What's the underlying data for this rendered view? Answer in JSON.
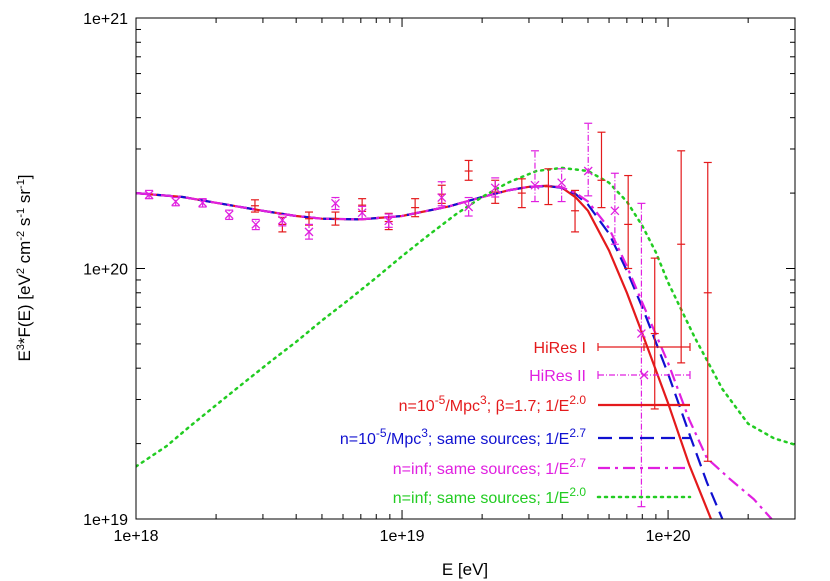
{
  "chart_data": {
    "type": "line",
    "xlabel": "E [eV]",
    "ylabel": {
      "base": "E",
      "sup1": "3",
      "mid1": "*F(E) [eV",
      "sup2": "2",
      "mid2": " cm",
      "sup3": "-2",
      "mid3": " s",
      "sup4": "-1",
      "mid4": " sr",
      "sup5": "-1",
      "end": "]"
    },
    "xscale": "log",
    "yscale": "log",
    "xlim": [
      1e+18,
      3e+20
    ],
    "ylim": [
      1e+19,
      1e+21
    ],
    "xticks": [
      {
        "value": 1e+18,
        "label": "1e+18"
      },
      {
        "value": 1e+19,
        "label": "1e+19"
      },
      {
        "value": 1e+20,
        "label": "1e+20"
      }
    ],
    "yticks": [
      {
        "value": 1e+19,
        "label": "1e+19"
      },
      {
        "value": 1e+20,
        "label": "1e+20"
      },
      {
        "value": 1e+21,
        "label": "1e+21"
      }
    ],
    "grid": false,
    "legend_position": "bottom-right",
    "legend": [
      {
        "parts": [
          {
            "t": "HiRes I"
          }
        ],
        "color": "#e41a1c",
        "style": "errorbar"
      },
      {
        "parts": [
          {
            "t": "HiRes II"
          }
        ],
        "color": "#e020e0",
        "style": "errorbar-x"
      },
      {
        "parts": [
          {
            "t": "n=10"
          },
          {
            "t": "-5",
            "sup": true
          },
          {
            "t": "/Mpc"
          },
          {
            "t": "3",
            "sup": true
          },
          {
            "t": "; β=1.7;  1/E"
          },
          {
            "t": "2.0",
            "sup": true
          }
        ],
        "color": "#e41a1c",
        "style": "solid"
      },
      {
        "parts": [
          {
            "t": "n=10"
          },
          {
            "t": "-5",
            "sup": true
          },
          {
            "t": "/Mpc"
          },
          {
            "t": "3",
            "sup": true
          },
          {
            "t": "; same sources; 1/E"
          },
          {
            "t": "2.7",
            "sup": true
          }
        ],
        "color": "#1010d0",
        "style": "dash"
      },
      {
        "parts": [
          {
            "t": "n=inf; same sources; 1/E"
          },
          {
            "t": "2.7",
            "sup": true
          }
        ],
        "color": "#e020e0",
        "style": "dashdot"
      },
      {
        "parts": [
          {
            "t": "n=inf; same sources; 1/E"
          },
          {
            "t": "2.0",
            "sup": true
          }
        ],
        "color": "#22cc22",
        "style": "dot"
      }
    ],
    "series": [
      {
        "name": "HiRes I",
        "kind": "errorbar",
        "color": "#e41a1c",
        "points": [
          {
            "x": 2.8e+18,
            "y": 1.78e+20,
            "lo": 1.68e+20,
            "hi": 1.88e+20
          },
          {
            "x": 3.55e+18,
            "y": 1.5e+20,
            "lo": 1.4e+20,
            "hi": 1.6e+20
          },
          {
            "x": 4.47e+18,
            "y": 1.58e+20,
            "lo": 1.49e+20,
            "hi": 1.68e+20
          },
          {
            "x": 5.62e+18,
            "y": 1.58e+20,
            "lo": 1.49e+20,
            "hi": 1.68e+20
          },
          {
            "x": 7.08e+18,
            "y": 1.79e+20,
            "lo": 1.69e+20,
            "hi": 1.9e+20
          },
          {
            "x": 8.91e+18,
            "y": 1.54e+20,
            "lo": 1.43e+20,
            "hi": 1.66e+20
          },
          {
            "x": 1.12e+19,
            "y": 1.75e+20,
            "lo": 1.61e+20,
            "hi": 1.9e+20
          },
          {
            "x": 1.41e+19,
            "y": 1.98e+20,
            "lo": 1.82e+20,
            "hi": 2.15e+20
          },
          {
            "x": 1.78e+19,
            "y": 2.45e+20,
            "lo": 2.25e+20,
            "hi": 2.7e+20
          },
          {
            "x": 2.24e+19,
            "y": 2.02e+20,
            "lo": 1.82e+20,
            "hi": 2.25e+20
          },
          {
            "x": 2.82e+19,
            "y": 2e+20,
            "lo": 1.75e+20,
            "hi": 2.28e+20
          },
          {
            "x": 3.55e+19,
            "y": 2.12e+20,
            "lo": 1.8e+20,
            "hi": 2.5e+20
          },
          {
            "x": 4.47e+19,
            "y": 1.7e+20,
            "lo": 1.4e+20,
            "hi": 2.05e+20
          },
          {
            "x": 5.62e+19,
            "y": 2.25e+20,
            "lo": 1.75e+20,
            "hi": 3.5e+20
          },
          {
            "x": 7.08e+19,
            "y": 1.5e+20,
            "lo": 1e+20,
            "hi": 2.35e+20
          },
          {
            "x": 8.91e+19,
            "y": 5.5e+19,
            "lo": 2.75e+19,
            "hi": 1.1e+20
          },
          {
            "x": 1.12e+20,
            "y": 1.25e+20,
            "lo": 4.2e+19,
            "hi": 2.95e+20
          },
          {
            "x": 1.41e+20,
            "y": 8e+19,
            "lo": 1.7e+19,
            "hi": 2.65e+20
          }
        ]
      },
      {
        "name": "HiRes II",
        "kind": "errorbar-x",
        "color": "#e020e0",
        "points": [
          {
            "x": 1.12e+18,
            "y": 1.97e+20,
            "lo": 1.9e+20,
            "hi": 2.05e+20
          },
          {
            "x": 1.41e+18,
            "y": 1.85e+20,
            "lo": 1.78e+20,
            "hi": 1.92e+20
          },
          {
            "x": 1.78e+18,
            "y": 1.83e+20,
            "lo": 1.76e+20,
            "hi": 1.9e+20
          },
          {
            "x": 2.24e+18,
            "y": 1.64e+20,
            "lo": 1.57e+20,
            "hi": 1.71e+20
          },
          {
            "x": 2.82e+18,
            "y": 1.5e+20,
            "lo": 1.43e+20,
            "hi": 1.57e+20
          },
          {
            "x": 3.55e+18,
            "y": 1.56e+20,
            "lo": 1.48e+20,
            "hi": 1.64e+20
          },
          {
            "x": 4.47e+18,
            "y": 1.4e+20,
            "lo": 1.31e+20,
            "hi": 1.5e+20
          },
          {
            "x": 5.62e+18,
            "y": 1.82e+20,
            "lo": 1.72e+20,
            "hi": 1.92e+20
          },
          {
            "x": 7.08e+18,
            "y": 1.67e+20,
            "lo": 1.58e+20,
            "hi": 1.77e+20
          },
          {
            "x": 8.91e+18,
            "y": 1.55e+20,
            "lo": 1.46e+20,
            "hi": 1.65e+20
          },
          {
            "x": 1.41e+19,
            "y": 1.92e+20,
            "lo": 1.78e+20,
            "hi": 2.22e+20
          },
          {
            "x": 1.78e+19,
            "y": 1.76e+20,
            "lo": 1.62e+20,
            "hi": 1.92e+20
          },
          {
            "x": 2.24e+19,
            "y": 2.1e+20,
            "lo": 1.93e+20,
            "hi": 2.3e+20
          },
          {
            "x": 3.16e+19,
            "y": 2.15e+20,
            "lo": 1.85e+20,
            "hi": 2.95e+20
          },
          {
            "x": 3.98e+19,
            "y": 2.2e+20,
            "lo": 1.85e+20,
            "hi": 2.5e+20
          },
          {
            "x": 5.01e+19,
            "y": 2.45e+20,
            "lo": 1.95e+20,
            "hi": 3.8e+20
          },
          {
            "x": 6.31e+19,
            "y": 1.7e+20,
            "lo": 1.25e+20,
            "hi": 2.4e+20
          },
          {
            "x": 7.94e+19,
            "y": 5.5e+19,
            "lo": 1.12e+19,
            "hi": 1.82e+20
          }
        ]
      },
      {
        "name": "n=10^-5/Mpc^3; β=1.7; 1/E^2.0",
        "kind": "line",
        "style": "solid",
        "color": "#e41a1c",
        "x": [
          1e+18,
          1.5e+18,
          2e+18,
          3e+18,
          4e+18,
          5e+18,
          7e+18,
          1e+19,
          1.5e+19,
          2e+19,
          2.5e+19,
          3e+19,
          3.5e+19,
          4e+19,
          4.5e+19,
          5e+19,
          6e+19,
          7e+19,
          8e+19,
          1e+20,
          1.2e+20,
          1.45e+20
        ],
        "y": [
          2e+20,
          1.93e+20,
          1.83e+20,
          1.7e+20,
          1.62e+20,
          1.58e+20,
          1.57e+20,
          1.62e+20,
          1.77e+20,
          1.93e+20,
          2.05e+20,
          2.12e+20,
          2.14e+20,
          2.1e+20,
          1.92e+20,
          1.7e+20,
          1.18e+20,
          8e+19,
          5.5e+19,
          2.9e+19,
          1.65e+19,
          1e+19
        ]
      },
      {
        "name": "n=10^-5/Mpc^3; same sources; 1/E^2.7",
        "kind": "line",
        "style": "dash",
        "color": "#1010d0",
        "x": [
          1e+18,
          1.5e+18,
          2e+18,
          3e+18,
          4e+18,
          5e+18,
          7e+18,
          1e+19,
          1.5e+19,
          2e+19,
          2.5e+19,
          3e+19,
          3.5e+19,
          4e+19,
          4.5e+19,
          5e+19,
          6e+19,
          7e+19,
          8e+19,
          1e+20,
          1.2e+20,
          1.4e+20,
          1.6e+20
        ],
        "y": [
          2e+20,
          1.93e+20,
          1.83e+20,
          1.7e+20,
          1.62e+20,
          1.58e+20,
          1.57e+20,
          1.62e+20,
          1.77e+20,
          1.93e+20,
          2.05e+20,
          2.12e+20,
          2.13e+20,
          2.1e+20,
          1.98e+20,
          1.8e+20,
          1.38e+20,
          9.8e+19,
          7e+19,
          3.8e+19,
          2.2e+19,
          1.4e+19,
          1e+19
        ]
      },
      {
        "name": "n=inf; same sources; 1/E^2.7",
        "kind": "line",
        "style": "dashdot",
        "color": "#e020e0",
        "x": [
          1e+18,
          1.5e+18,
          2e+18,
          3e+18,
          4e+18,
          5e+18,
          7e+18,
          1e+19,
          1.5e+19,
          2e+19,
          2.5e+19,
          3e+19,
          3.5e+19,
          4e+19,
          4.5e+19,
          5e+19,
          6e+19,
          7e+19,
          8e+19,
          1e+20,
          1.2e+20,
          1.4e+20,
          1.7e+20,
          2.1e+20,
          2.45e+20
        ],
        "y": [
          2e+20,
          1.93e+20,
          1.83e+20,
          1.7e+20,
          1.62e+20,
          1.58e+20,
          1.57e+20,
          1.62e+20,
          1.77e+20,
          1.93e+20,
          2.05e+20,
          2.12e+20,
          2.14e+20,
          2.11e+20,
          2e+20,
          1.85e+20,
          1.45e+20,
          1.02e+20,
          7.3e+19,
          4.2e+19,
          2.5e+19,
          1.75e+19,
          1.45e+19,
          1.2e+19,
          1e+19
        ]
      },
      {
        "name": "n=inf; same sources; 1/E^2.0",
        "kind": "line",
        "style": "dot",
        "color": "#22cc22",
        "x": [
          1e+18,
          1.3e+18,
          1.6e+18,
          2e+18,
          2.5e+18,
          3.2e+18,
          4e+18,
          5e+18,
          6.3e+18,
          8e+18,
          1e+19,
          1.26e+19,
          1.6e+19,
          2e+19,
          2.5e+19,
          3.2e+19,
          4e+19,
          5e+19,
          6e+19,
          7e+19,
          8e+19,
          9e+19,
          1e+20,
          1.26e+20,
          1.6e+20,
          2e+20,
          2.5e+20,
          3e+20
        ],
        "y": [
          1.62e+19,
          1.95e+19,
          2.35e+19,
          2.85e+19,
          3.45e+19,
          4.25e+19,
          5.1e+19,
          6.2e+19,
          7.5e+19,
          9.2e+19,
          1.12e+20,
          1.36e+20,
          1.65e+20,
          1.93e+20,
          2.2e+20,
          2.45e+20,
          2.52e+20,
          2.45e+20,
          2.2e+20,
          1.85e+20,
          1.48e+20,
          1.16e+20,
          8.8e+19,
          5.3e+19,
          3.3e+19,
          2.4e+19,
          2.1e+19,
          1.98e+19
        ]
      }
    ]
  }
}
